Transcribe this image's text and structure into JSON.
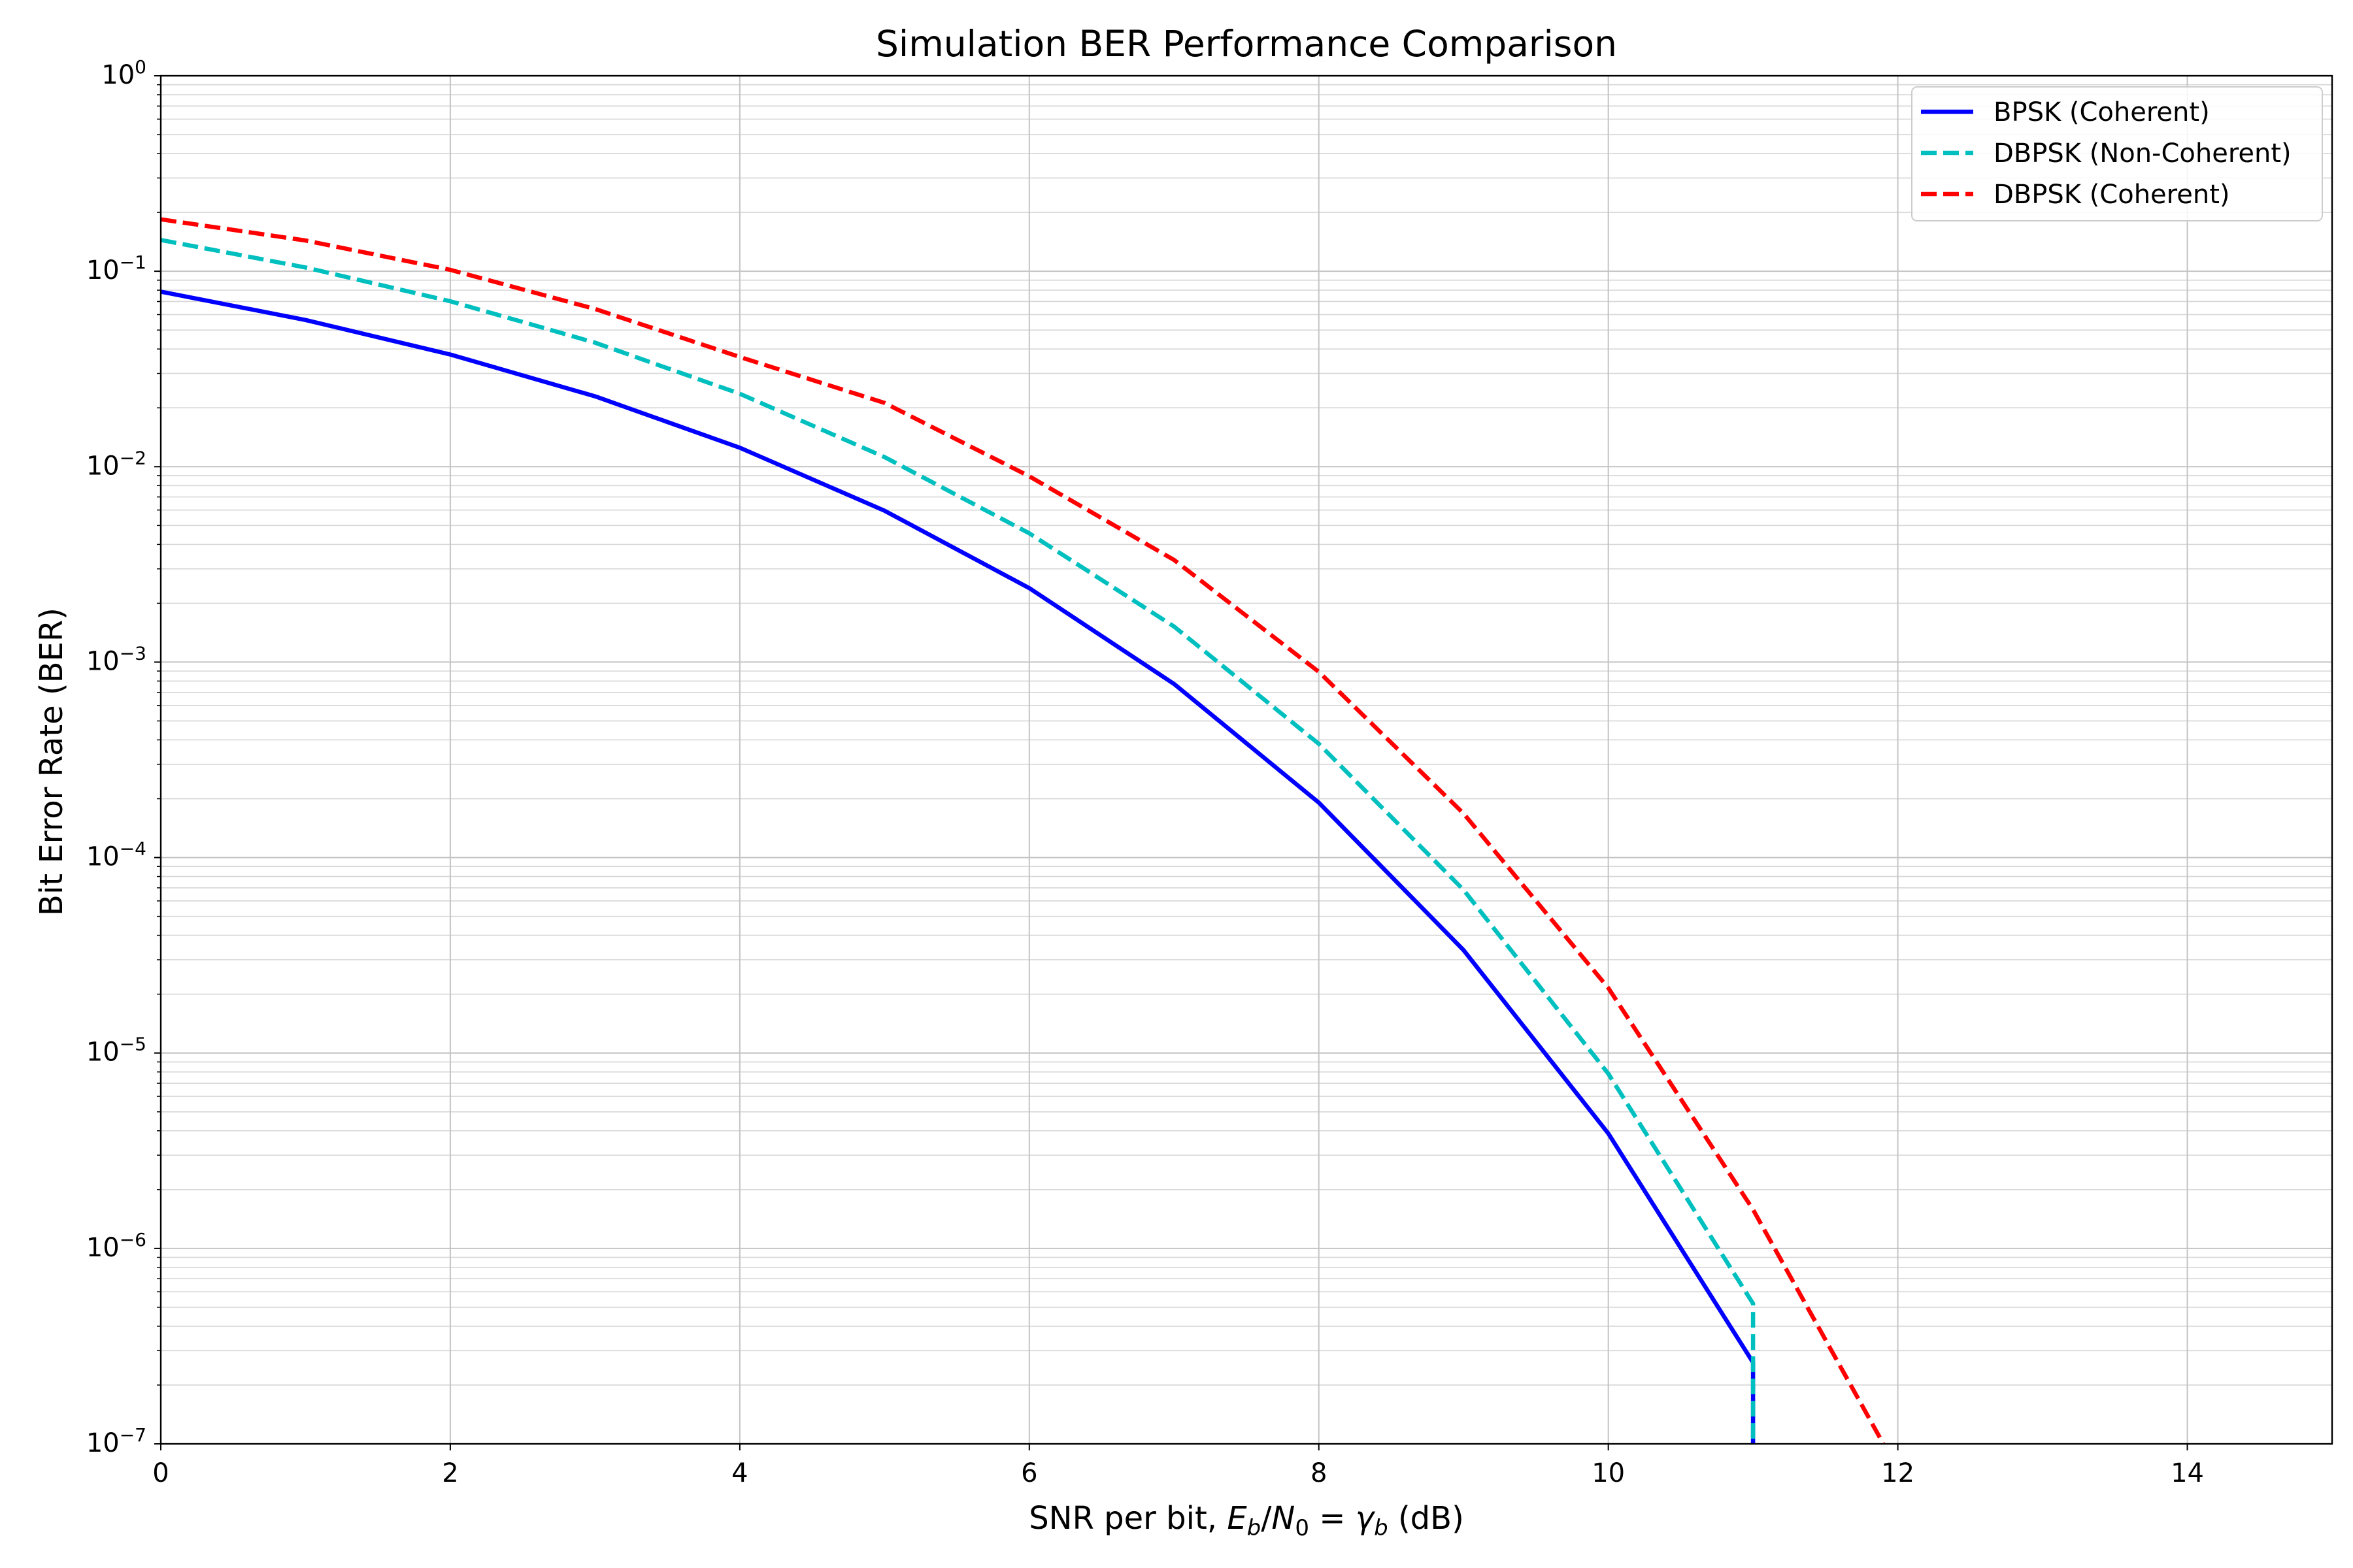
{
  "chart_data": {
    "type": "line",
    "title": "Simulation BER Performance Comparison",
    "xlabel": {
      "prefix": "SNR per bit, ",
      "E": "E",
      "E_sub": "b",
      "slash": "/",
      "N": "N",
      "N_sub": "0",
      "equals": " = ",
      "gamma": "γ",
      "gamma_sub": "b",
      "suffix": " (dB)"
    },
    "ylabel": "Bit Error Rate (BER)",
    "xlim": [
      0,
      15
    ],
    "ylim": [
      1e-07,
      1
    ],
    "yscale": "log",
    "grid": "major and minor",
    "legend_position": "top-right",
    "x_ticks": [
      "0",
      "2",
      "4",
      "6",
      "8",
      "10",
      "12",
      "14"
    ],
    "y_ticks": [
      {
        "base": "10",
        "exp": "0"
      },
      {
        "base": "10",
        "exp": "−1"
      },
      {
        "base": "10",
        "exp": "−2"
      },
      {
        "base": "10",
        "exp": "−3"
      },
      {
        "base": "10",
        "exp": "−4"
      },
      {
        "base": "10",
        "exp": "−5"
      },
      {
        "base": "10",
        "exp": "−6"
      },
      {
        "base": "10",
        "exp": "−7"
      }
    ],
    "series": [
      {
        "name": "BPSK (Coherent)",
        "color": "#0000ff",
        "style": "solid",
        "x": [
          0,
          1,
          2,
          3,
          4,
          5,
          6,
          7,
          8,
          9,
          10,
          11,
          11
        ],
        "y": [
          0.0786,
          0.0563,
          0.0375,
          0.0229,
          0.0125,
          0.00595,
          0.00239,
          0.000773,
          0.000191,
          3.36e-05,
          3.87e-06,
          2.61e-07,
          1e-07
        ]
      },
      {
        "name": "DBPSK (Non-Coherent)",
        "color": "#00bfbf",
        "style": "dashed",
        "x": [
          0,
          1,
          2,
          3,
          4,
          5,
          6,
          7,
          8,
          9,
          10,
          11,
          11
        ],
        "y": [
          0.1445,
          0.1045,
          0.0702,
          0.0431,
          0.0236,
          0.0112,
          0.00456,
          0.00152,
          0.000382,
          6.83e-05,
          7.83e-06,
          5.22e-07,
          1e-07
        ]
      },
      {
        "name": "DBPSK (Coherent)",
        "color": "#ff0000",
        "style": "dashed",
        "x": [
          0,
          1,
          2,
          3,
          4,
          5,
          6,
          7,
          8,
          9,
          10,
          11,
          11.9
        ],
        "y": [
          0.1843,
          0.1436,
          0.1017,
          0.0641,
          0.0364,
          0.0212,
          0.00893,
          0.00333,
          0.000892,
          0.000168,
          2.15e-05,
          1.58e-06,
          1e-07
        ]
      }
    ]
  }
}
